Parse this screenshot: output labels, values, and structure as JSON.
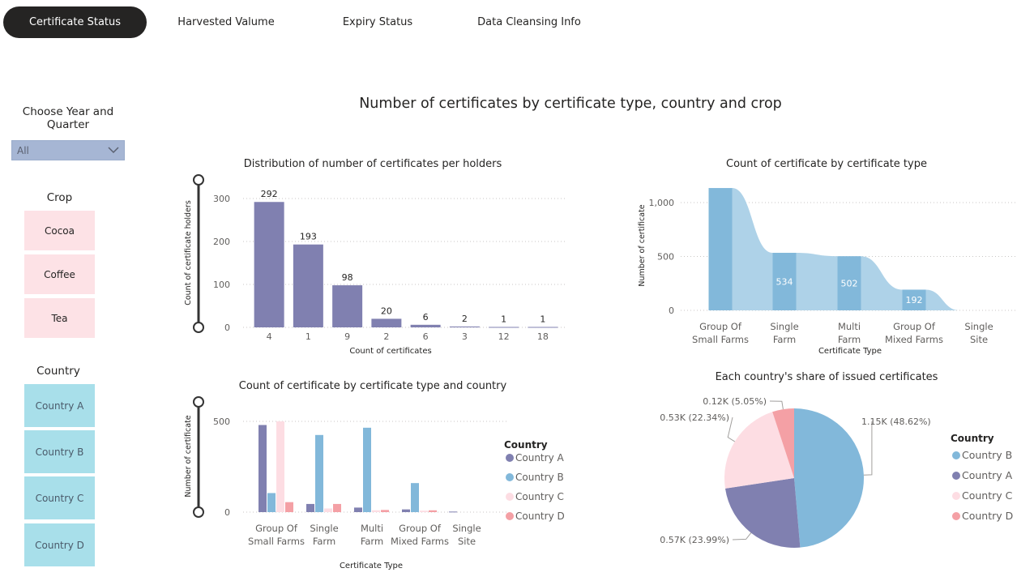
{
  "tabs": [
    "Certificate Status",
    "Harvested Valume",
    "Expiry Status",
    "Data Cleansing Info"
  ],
  "page_title": "Number of certificates by certificate type, country and crop",
  "filters": {
    "year_quarter": {
      "title": "Choose Year and Quarter",
      "value": "All"
    },
    "crop": {
      "title": "Crop",
      "items": [
        "Cocoa",
        "Coffee",
        "Tea"
      ]
    },
    "country": {
      "title": "Country",
      "items": [
        "Country A",
        "Country B",
        "Country C",
        "Country D"
      ]
    }
  },
  "colors": {
    "Country A": "#8080b0",
    "Country B": "#82b8da",
    "Country C": "#fddde3",
    "Country D": "#f4a0a5",
    "bar": "#8080b0",
    "ribbon_bar": "#82b8da",
    "ribbon_band": "#aed2e8"
  },
  "chart_data": [
    {
      "type": "bar",
      "title": "Distribution of number of certificates per holders",
      "xlabel": "Count of certificates",
      "ylabel": "Count of certificate holders",
      "categories": [
        "4",
        "1",
        "9",
        "2",
        "6",
        "3",
        "12",
        "18"
      ],
      "values": [
        292,
        193,
        98,
        20,
        6,
        2,
        1,
        1
      ],
      "yticks": [
        "0",
        "100",
        "200",
        "300"
      ],
      "ylim": [
        0,
        300
      ],
      "grid": true
    },
    {
      "type": "area",
      "title": "Count of certificate by certificate type",
      "xlabel": "Certificate Type",
      "ylabel": "Number of certificate",
      "categories": [
        "Group Of Small Farms",
        "Single Farm",
        "Multi Farm",
        "Group Of Mixed Farms",
        "Single Site"
      ],
      "values": [
        1135,
        534,
        502,
        192,
        0
      ],
      "data_labels": [
        "",
        "534",
        "502",
        "192",
        ""
      ],
      "yticks": [
        "0",
        "500",
        "1,000"
      ],
      "ylim": [
        0,
        1000
      ],
      "grid": true
    },
    {
      "type": "bar",
      "title": "Count of certificate by certificate type and country",
      "xlabel": "Certificate Type",
      "ylabel": "Number of certificate",
      "categories": [
        "Group Of Small Farms",
        "Single Farm",
        "Multi Farm",
        "Group Of Mixed Farms",
        "Single Site"
      ],
      "series": [
        {
          "name": "Country A",
          "values": [
            480,
            45,
            25,
            15,
            3
          ]
        },
        {
          "name": "Country B",
          "values": [
            105,
            425,
            465,
            160,
            0
          ]
        },
        {
          "name": "Country C",
          "values": [
            500,
            20,
            10,
            8,
            0
          ]
        },
        {
          "name": "Country D",
          "values": [
            55,
            45,
            12,
            10,
            0
          ]
        }
      ],
      "legend_title": "Country",
      "legend_position": "right",
      "yticks": [
        "0",
        "500"
      ],
      "ylim": [
        0,
        500
      ],
      "grid": true
    },
    {
      "type": "pie",
      "title": "Each country's share of issued certificates",
      "slices": [
        {
          "name": "Country B",
          "value": 48.62,
          "label": "1.15K (48.62%)"
        },
        {
          "name": "Country A",
          "value": 23.99,
          "label": "0.57K (23.99%)"
        },
        {
          "name": "Country C",
          "value": 22.34,
          "label": "0.53K (22.34%)"
        },
        {
          "name": "Country D",
          "value": 5.05,
          "label": "0.12K (5.05%)"
        }
      ],
      "legend_title": "Country",
      "legend_position": "right"
    }
  ]
}
